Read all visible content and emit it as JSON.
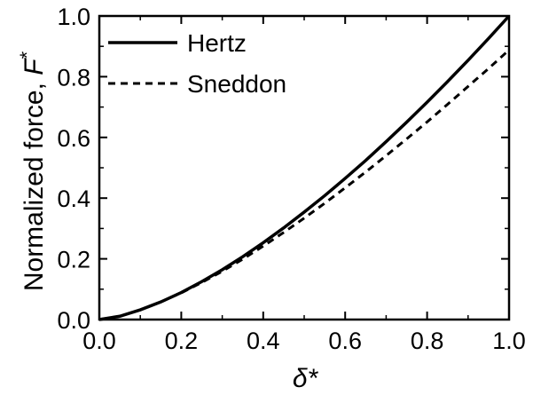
{
  "chart_data": {
    "type": "line",
    "title": "",
    "xlabel": "δ*",
    "ylabel_prefix": "Normalized force, ",
    "ylabel_symbol": "F",
    "ylabel_suffix": "*",
    "xlim": [
      0.0,
      1.0
    ],
    "ylim": [
      0.0,
      1.0
    ],
    "xticks": [
      "0.0",
      "0.2",
      "0.4",
      "0.6",
      "0.8",
      "1.0"
    ],
    "yticks": [
      "0.0",
      "0.2",
      "0.4",
      "0.6",
      "0.8",
      "1.0"
    ],
    "grid": false,
    "legend_position": "top-left",
    "x": [
      0.0,
      0.05,
      0.1,
      0.15,
      0.2,
      0.25,
      0.3,
      0.35,
      0.4,
      0.45,
      0.5,
      0.55,
      0.6,
      0.65,
      0.7,
      0.75,
      0.8,
      0.85,
      0.9,
      0.95,
      1.0
    ],
    "series": [
      {
        "name": "Hertz",
        "style": "solid",
        "color": "#000000",
        "values": [
          0.0,
          0.011,
          0.032,
          0.058,
          0.089,
          0.125,
          0.164,
          0.207,
          0.253,
          0.302,
          0.354,
          0.408,
          0.465,
          0.524,
          0.586,
          0.65,
          0.716,
          0.784,
          0.854,
          0.926,
          1.0
        ]
      },
      {
        "name": "Sneddon",
        "style": "dashed",
        "color": "#000000",
        "values": [
          0.0,
          0.011,
          0.032,
          0.058,
          0.088,
          0.122,
          0.159,
          0.199,
          0.242,
          0.287,
          0.334,
          0.383,
          0.434,
          0.486,
          0.54,
          0.595,
          0.651,
          0.709,
          0.768,
          0.827,
          0.888
        ]
      }
    ]
  }
}
